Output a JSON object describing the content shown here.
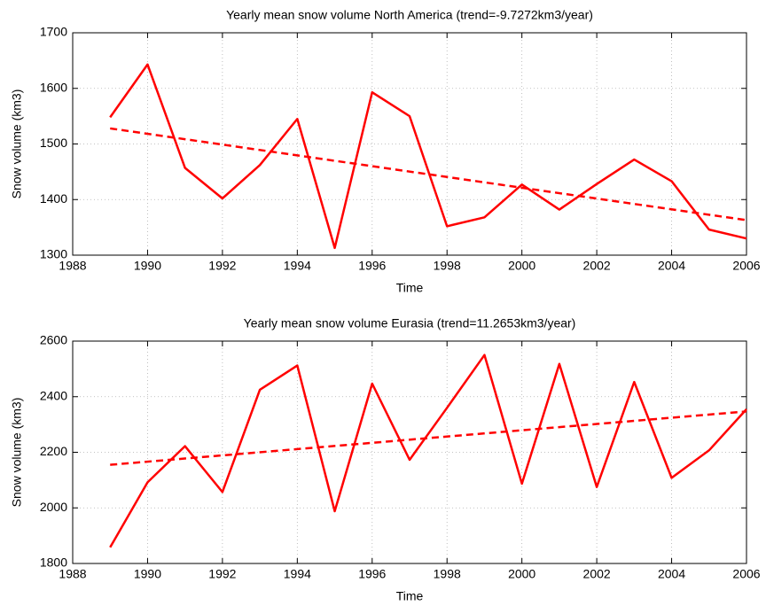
{
  "chart_data": [
    {
      "type": "line",
      "title": "Yearly mean snow volume North America (trend=-9.7272km3/year)",
      "xlabel": "Time",
      "ylabel": "Snow volume (km3)",
      "xlim": [
        1988,
        2006
      ],
      "xticks": [
        1988,
        1990,
        1992,
        1994,
        1996,
        1998,
        2000,
        2002,
        2004,
        2006
      ],
      "ylim": [
        1300,
        1700
      ],
      "yticks": [
        1300,
        1400,
        1500,
        1600,
        1700
      ],
      "grid": true,
      "series": [
        {
          "color": "#ff0000",
          "style": "solid",
          "x": [
            1989,
            1990,
            1991,
            1992,
            1993,
            1994,
            1995,
            1996,
            1997,
            1998,
            1999,
            2000,
            2001,
            2002,
            2003,
            2004,
            2005,
            2006
          ],
          "values": [
            1548,
            1643,
            1457,
            1402,
            1462,
            1545,
            1313,
            1593,
            1550,
            1352,
            1368,
            1427,
            1382,
            1428,
            1472,
            1433,
            1346,
            1330
          ]
        },
        {
          "color": "#ff0000",
          "style": "dashed",
          "x": [
            1989,
            2006
          ],
          "values": [
            1528,
            1363
          ]
        }
      ]
    },
    {
      "type": "line",
      "title": "Yearly mean snow volume Eurasia (trend=11.2653km3/year)",
      "xlabel": "Time",
      "ylabel": "Snow volume (km3)",
      "xlim": [
        1988,
        2006
      ],
      "xticks": [
        1988,
        1990,
        1992,
        1994,
        1996,
        1998,
        2000,
        2002,
        2004,
        2006
      ],
      "ylim": [
        1800,
        2600
      ],
      "yticks": [
        1800,
        2000,
        2200,
        2400,
        2600
      ],
      "grid": true,
      "series": [
        {
          "color": "#ff0000",
          "style": "solid",
          "x": [
            1989,
            1990,
            1991,
            1992,
            1993,
            1994,
            1995,
            1996,
            1997,
            1998,
            1999,
            2000,
            2001,
            2002,
            2003,
            2004,
            2005,
            2006
          ],
          "values": [
            1858,
            2092,
            2222,
            2057,
            2425,
            2512,
            1988,
            2447,
            2173,
            2360,
            2550,
            2087,
            2518,
            2075,
            2453,
            2108,
            2207,
            2355
          ]
        },
        {
          "color": "#ff0000",
          "style": "dashed",
          "x": [
            1989,
            2006
          ],
          "values": [
            2155,
            2347
          ]
        }
      ]
    }
  ]
}
